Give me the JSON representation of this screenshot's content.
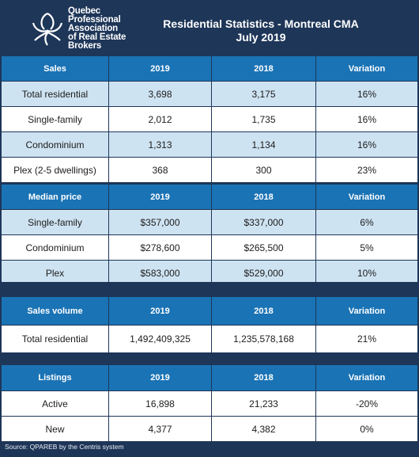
{
  "header": {
    "org_lines": [
      "Quebec",
      "Professional",
      "Association",
      "of Real Estate",
      "Brokers"
    ],
    "title_line1": "Residential Statistics - Montreal CMA",
    "title_line2": "July 2019"
  },
  "sections": [
    {
      "headers": [
        "Sales",
        "2019",
        "2018",
        "Variation"
      ],
      "rows": [
        [
          "Total residential",
          "3,698",
          "3,175",
          "16%"
        ],
        [
          "Single-family",
          "2,012",
          "1,735",
          "16%"
        ],
        [
          "Condominium",
          "1,313",
          "1,134",
          "16%"
        ],
        [
          "Plex (2-5 dwellings)",
          "368",
          "300",
          "23%"
        ]
      ]
    },
    {
      "headers": [
        "Median price",
        "2019",
        "2018",
        "Variation"
      ],
      "rows": [
        [
          "Single-family",
          "$357,000",
          "$337,000",
          "6%"
        ],
        [
          "Condominium",
          "$278,600",
          "$265,500",
          "5%"
        ],
        [
          "Plex",
          "$583,000",
          "$529,000",
          "10%"
        ]
      ]
    },
    {
      "headers": [
        "Sales volume",
        "2019",
        "2018",
        "Variation"
      ],
      "rows": [
        [
          "Total residential",
          "1,492,409,325",
          "1,235,578,168",
          "21%"
        ]
      ]
    },
    {
      "headers": [
        "Listings",
        "2019",
        "2018",
        "Variation"
      ],
      "rows": [
        [
          "Active",
          "16,898",
          "21,233",
          "-20%"
        ],
        [
          "New",
          "4,377",
          "4,382",
          "0%"
        ]
      ]
    }
  ],
  "footer": {
    "source": "Source: QPAREB by the Centris system"
  },
  "colors": {
    "navy": "#1e3658",
    "header_blue": "#1a73b5",
    "alt_row": "#cee3f2"
  }
}
